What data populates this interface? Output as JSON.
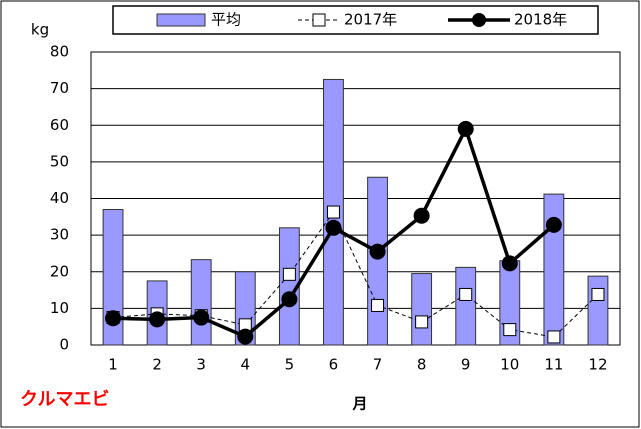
{
  "chart_data": {
    "type": "bar",
    "y_label": "kg",
    "x_label": "月",
    "annotation": "クルマエビ",
    "categories": [
      "1",
      "2",
      "3",
      "4",
      "5",
      "6",
      "7",
      "8",
      "9",
      "10",
      "11",
      "12"
    ],
    "series": [
      {
        "name": "平均",
        "type": "bar",
        "color": "#9999ff",
        "values": [
          37,
          17.5,
          23.3,
          20,
          32,
          72.5,
          45.8,
          19.5,
          21.2,
          23,
          41.2,
          18.8
        ]
      },
      {
        "name": "2017年",
        "type": "line",
        "color": "#000000",
        "values": [
          7.5,
          8.5,
          8,
          5.5,
          19.3,
          36.3,
          10.8,
          6.3,
          13.8,
          4.2,
          2.2,
          13.8
        ]
      },
      {
        "name": "2018年",
        "type": "line",
        "color": "#000000",
        "values": [
          7.3,
          7,
          7.5,
          2.3,
          12.5,
          32,
          25.5,
          35.3,
          59,
          22.3,
          32.8,
          null
        ]
      }
    ],
    "ylim": [
      0,
      80
    ],
    "yticks": [
      0,
      10,
      20,
      30,
      40,
      50,
      60,
      70,
      80
    ],
    "grid": true
  }
}
